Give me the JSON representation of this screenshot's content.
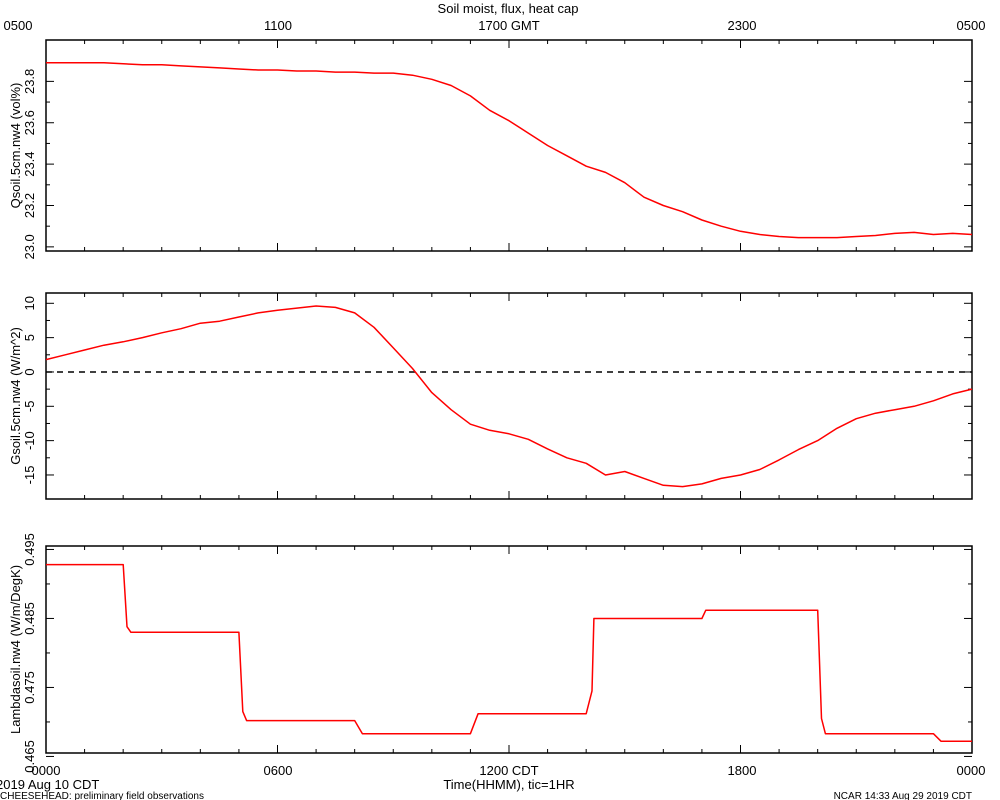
{
  "header": {
    "title": "Soil moist, flux, heat cap",
    "gmt_ticks": [
      "0500",
      "1100",
      "1700 GMT",
      "2300",
      "0500"
    ]
  },
  "footer": {
    "cdt_ticks": [
      "0000",
      "0600",
      "1200 CDT",
      "1800",
      "0000"
    ],
    "xlabel": "Time(HHMM), tic=1HR",
    "date_label": "2019 Aug 10 CDT",
    "project_note": "CHEESEHEAD: preliminary field observations",
    "credit": "NCAR 14:33 Aug 29 2019 CDT"
  },
  "chart_data": [
    {
      "type": "line",
      "ylabel": "Qsoil.5cm.nw4 (vol%)",
      "xlim": [
        0,
        24
      ],
      "ylim": [
        22.98,
        24.0
      ],
      "yticks": [
        23.0,
        23.2,
        23.4,
        23.6,
        23.8
      ],
      "yticklabels": [
        "23.0",
        "23.2",
        "23.4",
        "23.6",
        "23.8"
      ],
      "series_color": "#ff0000",
      "x": [
        0,
        0.5,
        1.0,
        1.5,
        2.0,
        2.5,
        3.0,
        3.5,
        4.0,
        4.5,
        5.0,
        5.5,
        6.0,
        6.5,
        7.0,
        7.5,
        8.0,
        8.5,
        9.0,
        9.5,
        10.0,
        10.5,
        11.0,
        11.5,
        12.0,
        12.5,
        13.0,
        13.5,
        14.0,
        14.5,
        15.0,
        15.5,
        16.0,
        16.5,
        17.0,
        17.5,
        18.0,
        18.5,
        19.0,
        19.5,
        20.0,
        20.5,
        21.0,
        21.5,
        22.0,
        22.5,
        23.0,
        23.5,
        24.0
      ],
      "values": [
        23.89,
        23.89,
        23.89,
        23.89,
        23.885,
        23.88,
        23.88,
        23.875,
        23.87,
        23.865,
        23.86,
        23.855,
        23.855,
        23.85,
        23.85,
        23.845,
        23.845,
        23.84,
        23.84,
        23.83,
        23.81,
        23.78,
        23.73,
        23.66,
        23.61,
        23.55,
        23.49,
        23.44,
        23.39,
        23.36,
        23.31,
        23.24,
        23.2,
        23.17,
        23.13,
        23.1,
        23.075,
        23.06,
        23.05,
        23.045,
        23.045,
        23.045,
        23.05,
        23.055,
        23.065,
        23.07,
        23.06,
        23.065,
        23.06
      ]
    },
    {
      "type": "line",
      "ylabel": "Gsoil.5cm.nw4 (W/m^2)",
      "xlim": [
        0,
        24
      ],
      "ylim": [
        -18.5,
        11.5
      ],
      "yticks": [
        10,
        5,
        0,
        -5,
        -10,
        -15
      ],
      "yticklabels": [
        "10",
        "5",
        "0",
        "-5",
        "-10",
        "-15"
      ],
      "reference_line": 0,
      "series_color": "#ff0000",
      "x": [
        0,
        0.5,
        1.0,
        1.5,
        2.0,
        2.5,
        3.0,
        3.5,
        4.0,
        4.5,
        5.0,
        5.5,
        6.0,
        6.5,
        7.0,
        7.5,
        8.0,
        8.5,
        9.0,
        9.5,
        10.0,
        10.5,
        11.0,
        11.5,
        12.0,
        12.5,
        13.0,
        13.5,
        14.0,
        14.5,
        15.0,
        15.5,
        16.0,
        16.5,
        17.0,
        17.5,
        18.0,
        18.5,
        19.0,
        19.5,
        20.0,
        20.5,
        21.0,
        21.5,
        22.0,
        22.5,
        23.0,
        23.5,
        24.0
      ],
      "values": [
        1.8,
        2.5,
        3.2,
        3.9,
        4.4,
        5.0,
        5.7,
        6.3,
        7.1,
        7.4,
        8.0,
        8.6,
        9.0,
        9.3,
        9.6,
        9.4,
        8.6,
        6.5,
        3.5,
        0.5,
        -3.0,
        -5.5,
        -7.6,
        -8.5,
        -9.0,
        -9.8,
        -11.2,
        -12.5,
        -13.3,
        -15.0,
        -14.5,
        -15.5,
        -16.5,
        -16.7,
        -16.3,
        -15.5,
        -15.0,
        -14.2,
        -12.8,
        -11.3,
        -10.0,
        -8.2,
        -6.8,
        -6.0,
        -5.5,
        -5.0,
        -4.2,
        -3.2,
        -2.5
      ]
    },
    {
      "type": "line",
      "ylabel": "Lambdasoil.nw4 (W/m/DegK)",
      "xlim": [
        0,
        24
      ],
      "ylim": [
        0.4655,
        0.4955
      ],
      "yticks": [
        0.495,
        0.485,
        0.475,
        0.465
      ],
      "yticklabels": [
        "0.495",
        "0.485",
        "0.475",
        "0.465"
      ],
      "series_color": "#ff0000",
      "x": [
        0,
        2.0,
        2.1,
        2.2,
        5.0,
        5.1,
        5.2,
        8.0,
        8.2,
        11.0,
        11.2,
        14.0,
        14.15,
        14.2,
        17.0,
        17.1,
        20.0,
        20.1,
        20.2,
        23.0,
        23.2,
        24.0
      ],
      "values": [
        0.4928,
        0.4928,
        0.4838,
        0.483,
        0.483,
        0.4715,
        0.4702,
        0.4702,
        0.4683,
        0.4683,
        0.4712,
        0.4712,
        0.4745,
        0.485,
        0.485,
        0.4862,
        0.4862,
        0.4705,
        0.4683,
        0.4683,
        0.4672,
        0.4672
      ]
    }
  ]
}
